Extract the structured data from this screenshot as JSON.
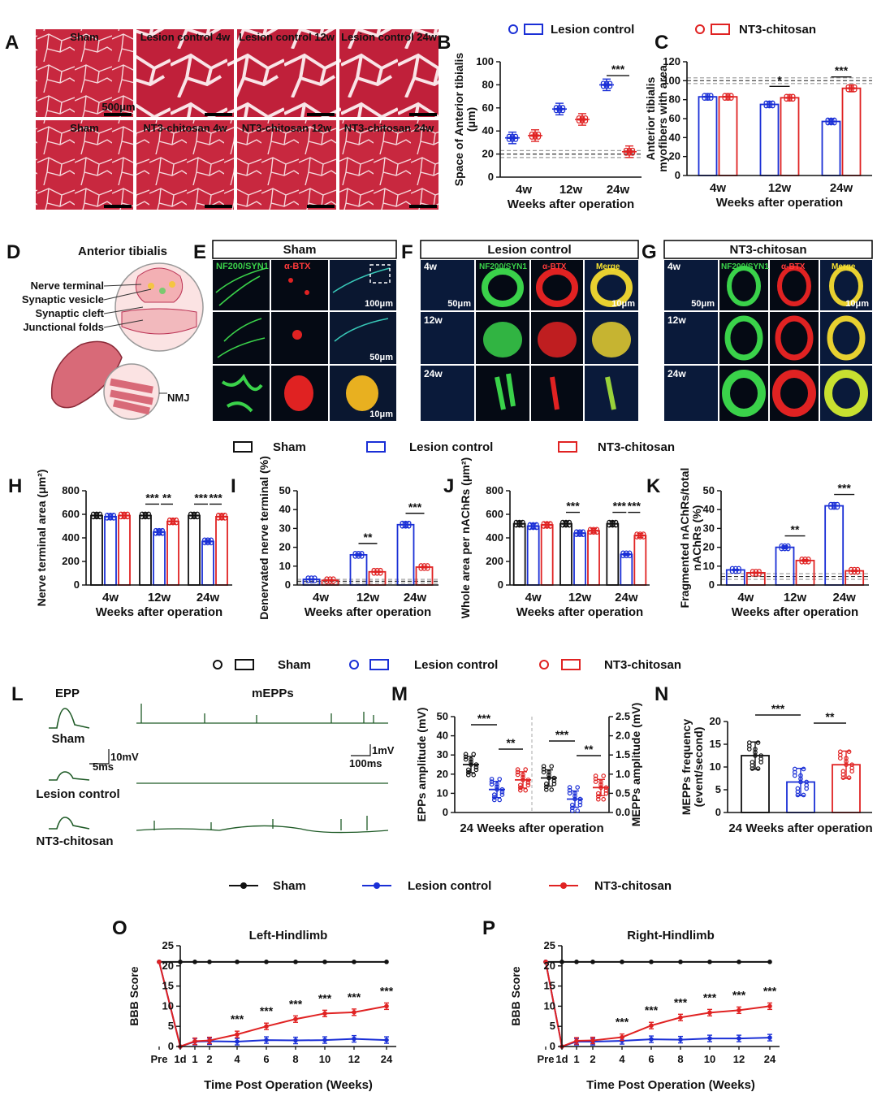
{
  "colors": {
    "sham": "#111111",
    "lesion": "#1a2fd6",
    "nt3": "#e02222",
    "muscle": "#c8283f",
    "fluor_bg": "#050a14"
  },
  "panels": {
    "A": "A",
    "B": "B",
    "C": "C",
    "D": "D",
    "E": "E",
    "F": "F",
    "G": "G",
    "H": "H",
    "I": "I",
    "J": "J",
    "K": "K",
    "L": "L",
    "M": "M",
    "N": "N",
    "O": "O",
    "P": "P"
  },
  "legend": {
    "sham": "Sham",
    "lesion": "Lesion control",
    "nt3": "NT3-chitosan"
  },
  "histology": {
    "top": [
      "Sham",
      "Lesion control 4w",
      "Lesion control 12w",
      "Lesion control 24w"
    ],
    "bottom": [
      "Sham",
      "NT3-chitosan 4w",
      "NT3-chitosan 12w",
      "NT3-chitosan 24w"
    ],
    "scale": "500μm"
  },
  "diagram": {
    "title": "Anterior tibialis",
    "labels": [
      "Nerve terminal",
      "Synaptic vesicle",
      "Synaptic cleft",
      "Junctional folds"
    ],
    "nmj": "NMJ"
  },
  "fluor": {
    "E": {
      "title": "Sham",
      "channels": [
        "NF200/SYN1",
        "α-BTX"
      ],
      "scales": [
        "100μm",
        "50μm",
        "10μm"
      ]
    },
    "F": {
      "title": "Lesion control",
      "rows": [
        "4w",
        "12w",
        "24w"
      ],
      "channels": [
        "NF200/SYN1",
        "α-BTX",
        "Merge"
      ],
      "scales": [
        "50μm",
        "10μm"
      ]
    },
    "G": {
      "title": "NT3-chitosan",
      "rows": [
        "4w",
        "12w",
        "24w"
      ],
      "channels": [
        "NF200/SYN1",
        "α-BTX",
        "Merge"
      ],
      "scales": [
        "50μm",
        "10μm"
      ]
    }
  },
  "ephys": {
    "epp": "EPP",
    "mepps": "mEPPs",
    "rows": [
      "Sham",
      "Lesion control",
      "NT3-chitosan"
    ],
    "scale_epp_v": "10mV",
    "scale_epp_t": "5ms",
    "scale_m_v": "1mV",
    "scale_m_t": "100ms"
  },
  "chart_data": [
    {
      "id": "B",
      "type": "scatter",
      "xlabel": "Weeks after operation",
      "ylabel": "Space of Anterior tibialis (μm)",
      "categories": [
        "4w",
        "12w",
        "24w"
      ],
      "ylim": [
        0,
        100
      ],
      "yticks": [
        0,
        20,
        40,
        60,
        80,
        100
      ],
      "series": [
        {
          "name": "Lesion control",
          "values": [
            34,
            59,
            80
          ]
        },
        {
          "name": "NT3-chitosan",
          "values": [
            36,
            50,
            22
          ]
        }
      ],
      "sham_band": [
        17,
        20,
        23
      ],
      "significance": [
        {
          "group": "24w",
          "label": "***"
        }
      ]
    },
    {
      "id": "C",
      "type": "bar",
      "xlabel": "Weeks after operation",
      "ylabel": "Anterior tibialis myofibers with area",
      "categories": [
        "4w",
        "12w",
        "24w"
      ],
      "ylim": [
        0,
        120
      ],
      "yticks": [
        0,
        20,
        40,
        60,
        80,
        100,
        120
      ],
      "series": [
        {
          "name": "Lesion control",
          "values": [
            83,
            75,
            57
          ]
        },
        {
          "name": "NT3-chitosan",
          "values": [
            83,
            82,
            92
          ]
        }
      ],
      "sham_band": [
        97,
        100,
        103
      ],
      "significance": [
        {
          "group": "12w",
          "label": "*"
        },
        {
          "group": "24w",
          "label": "***"
        }
      ]
    },
    {
      "id": "H",
      "type": "bar",
      "xlabel": "Weeks after operation",
      "ylabel": "Nerve terminal area (μm²)",
      "categories": [
        "4w",
        "12w",
        "24w"
      ],
      "ylim": [
        0,
        800
      ],
      "yticks": [
        0,
        200,
        400,
        600,
        800
      ],
      "series": [
        {
          "name": "Sham",
          "values": [
            590,
            590,
            590
          ]
        },
        {
          "name": "Lesion control",
          "values": [
            580,
            450,
            370
          ]
        },
        {
          "name": "NT3-chitosan",
          "values": [
            590,
            540,
            580
          ]
        }
      ],
      "significance": [
        {
          "group": "12w",
          "labels": [
            "***",
            "**"
          ]
        },
        {
          "group": "24w",
          "labels": [
            "***",
            "***"
          ]
        }
      ]
    },
    {
      "id": "I",
      "type": "bar",
      "xlabel": "Weeks after operation",
      "ylabel": "Denervated nerve terminal (%)",
      "categories": [
        "4w",
        "12w",
        "24w"
      ],
      "ylim": [
        0,
        50
      ],
      "yticks": [
        0,
        10,
        20,
        30,
        40,
        50
      ],
      "series": [
        {
          "name": "Lesion control",
          "values": [
            3,
            16,
            32
          ]
        },
        {
          "name": "NT3-chitosan",
          "values": [
            2.5,
            7,
            9.5
          ]
        }
      ],
      "sham_band": [
        1,
        2,
        3
      ],
      "significance": [
        {
          "group": "12w",
          "label": "**"
        },
        {
          "group": "24w",
          "label": "***"
        }
      ]
    },
    {
      "id": "J",
      "type": "bar",
      "xlabel": "Weeks after operation",
      "ylabel": "Whole area per nAChRs (μm²)",
      "categories": [
        "4w",
        "12w",
        "24w"
      ],
      "ylim": [
        0,
        800
      ],
      "yticks": [
        0,
        200,
        400,
        600,
        800
      ],
      "series": [
        {
          "name": "Sham",
          "values": [
            520,
            520,
            520
          ]
        },
        {
          "name": "Lesion control",
          "values": [
            500,
            440,
            260
          ]
        },
        {
          "name": "NT3-chitosan",
          "values": [
            510,
            460,
            420
          ]
        }
      ],
      "significance": [
        {
          "group": "12w",
          "labels": [
            "***"
          ]
        },
        {
          "group": "24w",
          "labels": [
            "***",
            "***"
          ]
        }
      ]
    },
    {
      "id": "K",
      "type": "bar",
      "xlabel": "Weeks after operation",
      "ylabel": "Fragmented nAChRs/total nAChRs (%)",
      "categories": [
        "4w",
        "12w",
        "24w"
      ],
      "ylim": [
        0,
        50
      ],
      "yticks": [
        0,
        10,
        20,
        30,
        40,
        50
      ],
      "series": [
        {
          "name": "Lesion control",
          "values": [
            8,
            20,
            42
          ]
        },
        {
          "name": "NT3-chitosan",
          "values": [
            6.5,
            13,
            7.5
          ]
        }
      ],
      "sham_band": [
        3,
        4.5,
        6
      ],
      "significance": [
        {
          "group": "12w",
          "label": "**"
        },
        {
          "group": "24w",
          "label": "***"
        }
      ]
    },
    {
      "id": "M",
      "type": "scatter",
      "xlabel": "24 Weeks after operation",
      "ylabel": "EPPs amplitude (mV)",
      "ylabel_right": "MEPPs amplitude (mV)",
      "ylim": [
        0,
        50
      ],
      "yticks": [
        0,
        10,
        20,
        30,
        40,
        50
      ],
      "ylim_right": [
        0,
        2.5
      ],
      "yticks_right": [
        "0.0",
        "0.5",
        "1.0",
        "1.5",
        "2.0",
        "2.5"
      ],
      "series": [
        {
          "name": "Sham",
          "values": [
            25
          ]
        },
        {
          "name": "Lesion control",
          "values": [
            12
          ]
        },
        {
          "name": "NT3-chitosan",
          "values": [
            17
          ]
        },
        {
          "name": "Sham",
          "values": [
            0.9
          ]
        },
        {
          "name": "Lesion control",
          "values": [
            0.35
          ]
        },
        {
          "name": "NT3-chitosan",
          "values": [
            0.65
          ]
        }
      ],
      "significance": [
        "***",
        "**",
        "***",
        "**"
      ]
    },
    {
      "id": "N",
      "type": "bar",
      "xlabel": "24 Weeks after operation",
      "ylabel": "MEPPs frequency (event/second)",
      "ylim": [
        0,
        20
      ],
      "yticks": [
        0,
        5,
        10,
        15,
        20
      ],
      "series": [
        {
          "name": "Sham",
          "values": [
            12.5
          ]
        },
        {
          "name": "Lesion control",
          "values": [
            6.7
          ]
        },
        {
          "name": "NT3-chitosan",
          "values": [
            10.5
          ]
        }
      ],
      "significance": [
        "***",
        "**"
      ]
    },
    {
      "id": "O",
      "type": "line",
      "title": "Left-Hindlimb",
      "xlabel": "Time Post Operation (Weeks)",
      "ylabel": "BBB Score",
      "x": [
        "Pre",
        "1d",
        "1",
        "2",
        "4",
        "6",
        "8",
        "10",
        "12",
        "24"
      ],
      "ylim": [
        0,
        25
      ],
      "yticks": [
        0,
        5,
        10,
        15,
        20,
        25
      ],
      "series": [
        {
          "name": "Sham",
          "values": [
            21,
            21,
            21,
            21,
            21,
            21,
            21,
            21,
            21,
            21
          ]
        },
        {
          "name": "Lesion control",
          "values": [
            21,
            0,
            1.2,
            1.3,
            1.2,
            1.6,
            1.5,
            1.6,
            1.9,
            1.6
          ]
        },
        {
          "name": "NT3-chitosan",
          "values": [
            21,
            0,
            1.3,
            1.5,
            3,
            5,
            6.8,
            8.2,
            8.5,
            10
          ]
        }
      ],
      "significance": [
        "***",
        "***",
        "***",
        "***",
        "***",
        "***"
      ]
    },
    {
      "id": "P",
      "type": "line",
      "title": "Right-Hindlimb",
      "xlabel": "Time Post Operation (Weeks)",
      "ylabel": "BBB Score",
      "x": [
        "Pre",
        "1d",
        "1",
        "2",
        "4",
        "6",
        "8",
        "10",
        "12",
        "24"
      ],
      "ylim": [
        0,
        25
      ],
      "yticks": [
        0,
        5,
        10,
        15,
        20,
        25
      ],
      "series": [
        {
          "name": "Sham",
          "values": [
            21,
            21,
            21,
            21,
            21,
            21,
            21,
            21,
            21,
            21
          ]
        },
        {
          "name": "Lesion control",
          "values": [
            21,
            0,
            1.2,
            1.2,
            1.4,
            1.8,
            1.7,
            2,
            2,
            2.2
          ]
        },
        {
          "name": "NT3-chitosan",
          "values": [
            21,
            0,
            1.4,
            1.5,
            2.3,
            5.2,
            7.2,
            8.4,
            9,
            10
          ]
        }
      ],
      "significance": [
        "***",
        "***",
        "***",
        "***",
        "***",
        "***"
      ]
    }
  ]
}
